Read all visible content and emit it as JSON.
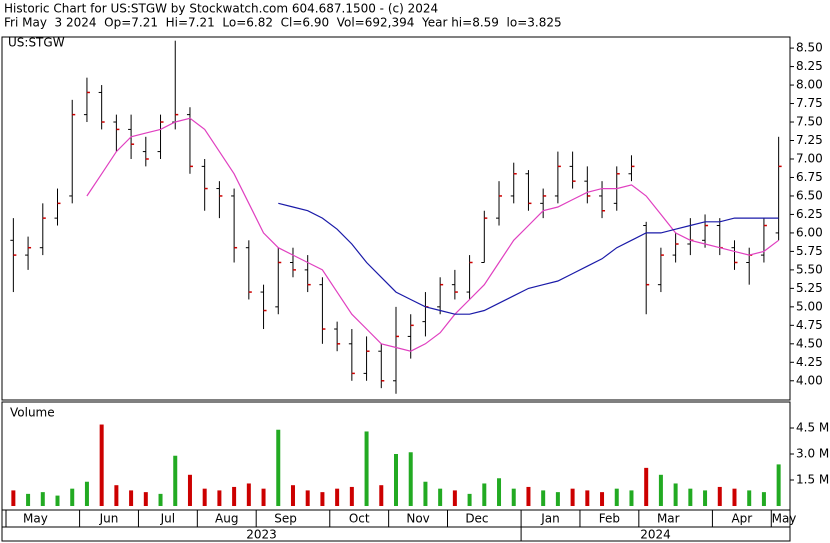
{
  "chart_data": [
    {
      "type": "ohlc",
      "title": "Historic Chart for US:STGW by Stockwatch.com 604.687.1500 - (c) 2024",
      "subtitle": "Fri May  3 2024  Op=7.21  Hi=7.21  Lo=6.82  Cl=6.90  Vol=692,394  Year hi=8.59  lo=3.825",
      "symbol": "US:STGW",
      "ylim": [
        3.74,
        8.65
      ],
      "yticks": [
        {
          "value": 4,
          "label": "4.00"
        },
        {
          "value": 4.25,
          "label": "4.25"
        },
        {
          "value": 4.5,
          "label": "4.50"
        },
        {
          "value": 4.75,
          "label": "4.75"
        },
        {
          "value": 5,
          "label": "5.00"
        },
        {
          "value": 5.25,
          "label": "5.25"
        },
        {
          "value": 5.5,
          "label": "5.50"
        },
        {
          "value": 5.75,
          "label": "5.75"
        },
        {
          "value": 6,
          "label": "6.00"
        },
        {
          "value": 6.25,
          "label": "6.25"
        },
        {
          "value": 6.5,
          "label": "6.50"
        },
        {
          "value": 6.75,
          "label": "6.75"
        },
        {
          "value": 7,
          "label": "7.00"
        },
        {
          "value": 7.25,
          "label": "7.25"
        },
        {
          "value": 7.5,
          "label": "7.50"
        },
        {
          "value": 7.75,
          "label": "7.75"
        },
        {
          "value": 8,
          "label": "8.00"
        },
        {
          "value": 8.25,
          "label": "8.25"
        },
        {
          "value": 8.5,
          "label": "8.50"
        }
      ],
      "bar_color": "#000000",
      "close_color": "#cc0000",
      "open": [
        5.9,
        5.7,
        5.8,
        6.2,
        6.5,
        7.6,
        7.9,
        7.5,
        7.4,
        7.1,
        7.1,
        7.5,
        7.6,
        6.9,
        6.6,
        6.5,
        5.8,
        5.2,
        5.0,
        5.6,
        5.5,
        5.3,
        4.7,
        4.5,
        4.1,
        4.4,
        4.0,
        4.6,
        4.8,
        5.0,
        5.3,
        5.2,
        5.6,
        6.2,
        6.5,
        6.8,
        6.4,
        6.5,
        6.9,
        6.7,
        6.5,
        6.4,
        6.8,
        6.1,
        5.3,
        5.7,
        5.85,
        5.9,
        6.1,
        5.8,
        5.6,
        5.7,
        6.0
      ],
      "high": [
        6.2,
        5.95,
        6.4,
        6.6,
        7.8,
        8.1,
        8.0,
        7.6,
        7.6,
        7.3,
        7.6,
        8.6,
        7.7,
        7.0,
        6.7,
        6.6,
        5.9,
        5.3,
        5.8,
        5.8,
        5.7,
        5.4,
        4.8,
        4.7,
        4.6,
        4.5,
        5.0,
        4.9,
        5.2,
        5.4,
        5.5,
        5.7,
        6.3,
        6.7,
        6.95,
        6.85,
        6.6,
        7.1,
        7.1,
        6.9,
        6.7,
        6.9,
        7.05,
        6.15,
        5.8,
        6.0,
        6.2,
        6.25,
        6.2,
        5.9,
        5.8,
        6.2,
        7.3
      ],
      "low": [
        5.2,
        5.5,
        5.7,
        6.1,
        6.4,
        7.5,
        7.4,
        7.1,
        7.0,
        6.9,
        7.0,
        7.4,
        6.8,
        6.3,
        6.2,
        5.6,
        5.1,
        4.7,
        4.9,
        5.4,
        5.2,
        4.5,
        4.4,
        4.0,
        4.0,
        3.9,
        3.825,
        4.3,
        4.6,
        4.9,
        5.1,
        5.1,
        5.6,
        6.1,
        6.4,
        6.3,
        6.2,
        6.4,
        6.6,
        6.4,
        6.2,
        6.3,
        6.7,
        4.9,
        5.2,
        5.6,
        5.7,
        5.8,
        5.7,
        5.5,
        5.3,
        5.6,
        5.9
      ],
      "close": [
        5.7,
        5.8,
        6.2,
        6.4,
        7.6,
        7.9,
        7.5,
        7.4,
        7.2,
        7.0,
        7.5,
        7.6,
        6.9,
        6.6,
        6.5,
        5.8,
        5.2,
        4.95,
        5.6,
        5.5,
        5.3,
        4.7,
        4.5,
        4.1,
        4.4,
        4.0,
        4.6,
        4.75,
        5.0,
        5.3,
        5.2,
        5.6,
        6.2,
        6.5,
        6.8,
        6.4,
        6.5,
        6.9,
        6.7,
        6.5,
        6.3,
        6.8,
        6.9,
        5.3,
        5.7,
        5.85,
        5.9,
        6.1,
        5.8,
        5.6,
        5.7,
        6.1,
        6.9
      ],
      "series": [
        {
          "color": "#e040c0",
          "values": [
            null,
            null,
            null,
            null,
            null,
            6.5,
            6.8,
            7.1,
            7.3,
            7.35,
            7.4,
            7.5,
            7.55,
            7.4,
            7.1,
            6.8,
            6.4,
            6.0,
            5.8,
            5.7,
            5.6,
            5.5,
            5.2,
            4.9,
            4.7,
            4.5,
            4.45,
            4.4,
            4.5,
            4.65,
            4.9,
            5.1,
            5.3,
            5.6,
            5.9,
            6.1,
            6.3,
            6.35,
            6.45,
            6.55,
            6.6,
            6.6,
            6.65,
            6.5,
            6.25,
            6.0,
            5.9,
            5.85,
            5.8,
            5.75,
            5.7,
            5.75,
            5.9
          ]
        },
        {
          "color": "#1a1aa8",
          "values": [
            null,
            null,
            null,
            null,
            null,
            null,
            null,
            null,
            null,
            null,
            null,
            null,
            null,
            null,
            null,
            null,
            null,
            null,
            6.4,
            6.35,
            6.3,
            6.2,
            6.05,
            5.85,
            5.6,
            5.4,
            5.2,
            5.1,
            5.0,
            4.95,
            4.9,
            4.9,
            4.95,
            5.05,
            5.15,
            5.25,
            5.3,
            5.35,
            5.45,
            5.55,
            5.65,
            5.8,
            5.9,
            6.0,
            6.0,
            6.05,
            6.1,
            6.15,
            6.15,
            6.2,
            6.2,
            6.2,
            6.2
          ]
        }
      ]
    },
    {
      "type": "bar",
      "title": "Volume",
      "categories": [
        "May",
        null,
        null,
        null,
        null,
        "Jun",
        null,
        null,
        null,
        "Jul",
        null,
        null,
        null,
        "Aug",
        null,
        null,
        null,
        "Sep",
        null,
        null,
        null,
        null,
        "Oct",
        null,
        null,
        null,
        "Nov",
        null,
        null,
        null,
        "Dec",
        null,
        null,
        null,
        null,
        "Jan",
        null,
        null,
        null,
        "Feb",
        null,
        null,
        null,
        "Mar",
        null,
        null,
        null,
        null,
        "Apr",
        null,
        null,
        null,
        "May"
      ],
      "years": [
        "2023",
        "2024"
      ],
      "ylim": [
        0,
        6000000
      ],
      "yticks": [
        {
          "value": 1500000,
          "label": "1.5 M"
        },
        {
          "value": 3000000,
          "label": "3.0 M"
        },
        {
          "value": 4500000,
          "label": "4.5 M"
        }
      ],
      "up_color": "#22aa22",
      "down_color": "#cc0000",
      "values": [
        900000,
        700000,
        800000,
        600000,
        1000000,
        1400000,
        4700000,
        1200000,
        900000,
        800000,
        700000,
        2900000,
        1800000,
        1000000,
        900000,
        1100000,
        1300000,
        1000000,
        4400000,
        1200000,
        900000,
        800000,
        1000000,
        1100000,
        4300000,
        1200000,
        3000000,
        3100000,
        1400000,
        1000000,
        900000,
        700000,
        1300000,
        1600000,
        1000000,
        1100000,
        900000,
        800000,
        1000000,
        900000,
        800000,
        1000000,
        900000,
        2200000,
        1800000,
        1300000,
        1000000,
        900000,
        1100000,
        1000000,
        900000,
        800000,
        2400000
      ]
    }
  ]
}
